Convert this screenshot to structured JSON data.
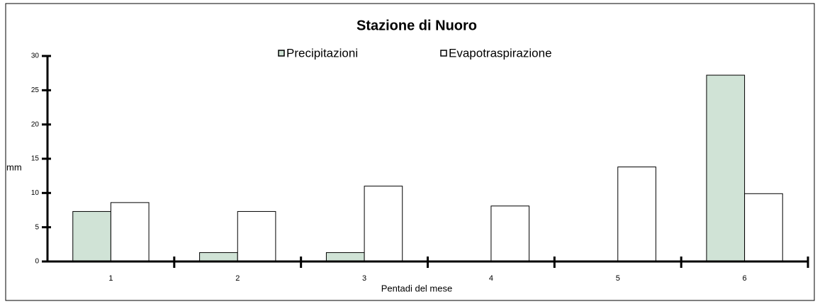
{
  "chart_data": {
    "type": "bar",
    "title": "Stazione di Nuoro",
    "x_label": "Pentadi del mese",
    "y_label": "mm",
    "categories": [
      "1",
      "2",
      "3",
      "4",
      "5",
      "6"
    ],
    "series": [
      {
        "name": "Precipitazioni",
        "color": "#d0e3d6",
        "values": [
          7.3,
          1.3,
          1.3,
          0.1,
          0,
          27.2
        ]
      },
      {
        "name": "Evapotraspirazione",
        "color": "#ffffff",
        "values": [
          8.6,
          7.3,
          11.0,
          8.1,
          13.8,
          9.9
        ]
      }
    ],
    "ylim": [
      0,
      30
    ],
    "yticks": [
      0,
      5,
      10,
      15,
      20,
      25,
      30
    ],
    "grid": false,
    "legend": "top"
  }
}
